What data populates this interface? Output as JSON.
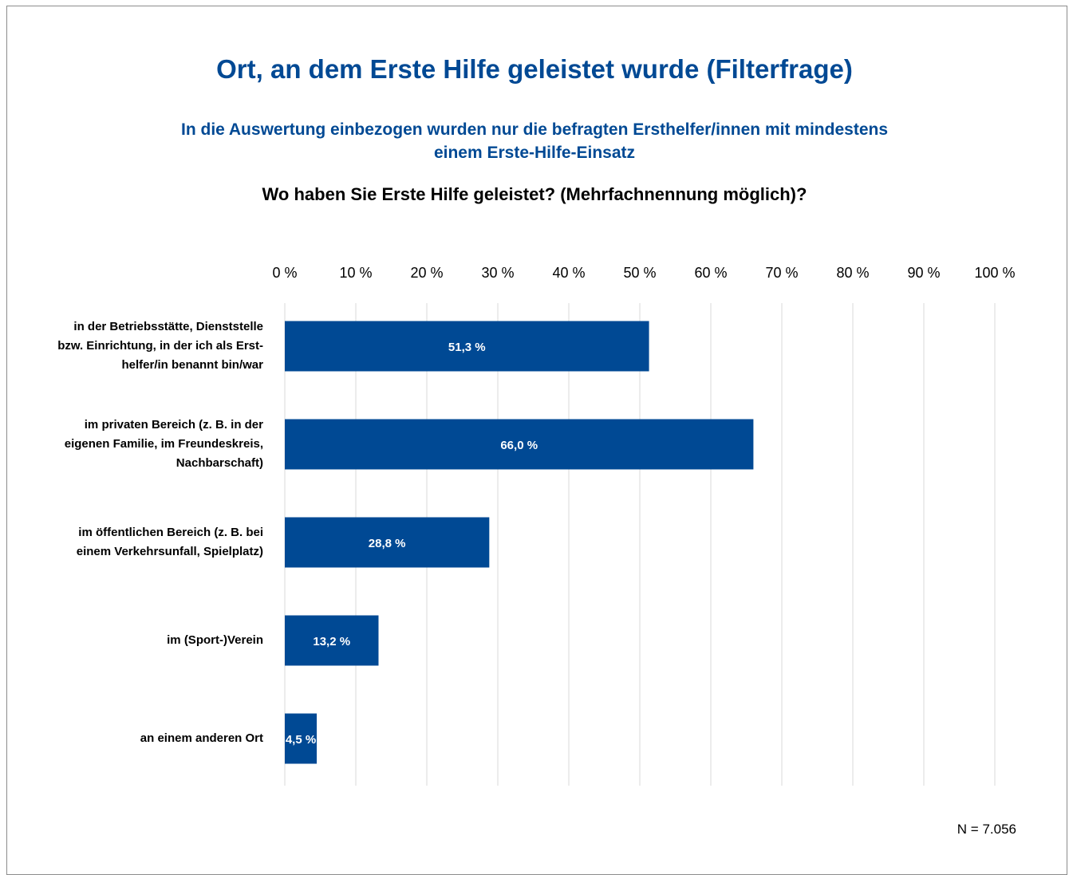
{
  "chart_data": {
    "type": "bar",
    "orientation": "horizontal",
    "title": "Ort, an dem Erste Hilfe geleistet wurde (Filterfrage)",
    "subtitle": "In die Auswertung einbezogen wurden nur die befragten Ersthelfer/innen mit mindestens einem Erste-Hilfe-Einsatz",
    "question": "Wo haben Sie Erste Hilfe geleistet? (Mehrfachnennung möglich)?",
    "categories": [
      "in der Betriebsstätte, Dienststelle bzw. Einrichtung, in der ich als Erst-helfer/in benannt bin/war",
      "im privaten Bereich (z. B. in der eigenen Familie, im Freundeskreis, Nachbarschaft)",
      "im öffentlichen Bereich (z. B. bei einem Verkehrsunfall, Spielplatz)",
      "im (Sport-)Verein",
      "an einem anderen Ort"
    ],
    "values": [
      51.3,
      66.0,
      28.8,
      13.2,
      4.5
    ],
    "data_labels": [
      "51,3 %",
      "66,0 %",
      "28,8 %",
      "13,2 %",
      "4,5 %"
    ],
    "xlim": [
      0,
      100
    ],
    "x_ticks": [
      0,
      10,
      20,
      30,
      40,
      50,
      60,
      70,
      80,
      90,
      100
    ],
    "x_tick_labels": [
      "0 %",
      "10 %",
      "20 %",
      "30 %",
      "40 %",
      "50 %",
      "60 %",
      "70 %",
      "80 %",
      "90 %",
      "100 %"
    ],
    "axis_position": "top",
    "grid": true,
    "bar_color": "#004994",
    "title_color": "#004994",
    "note": "N = 7.056"
  },
  "labels": {
    "cat0_lines": [
      "in der Betriebsstätte, Dienststelle",
      "bzw. Einrichtung, in der ich als Erst-",
      "helfer/in benannt bin/war"
    ],
    "cat1_lines": [
      "im privaten Bereich (z. B. in der",
      "eigenen Familie, im Freundeskreis,",
      "Nachbarschaft)"
    ],
    "cat2_lines": [
      "im öffentlichen Bereich (z. B. bei",
      "einem Verkehrsunfall, Spielplatz)"
    ],
    "cat3_lines": [
      "im (Sport-)Verein"
    ],
    "cat4_lines": [
      "an einem anderen Ort"
    ]
  }
}
